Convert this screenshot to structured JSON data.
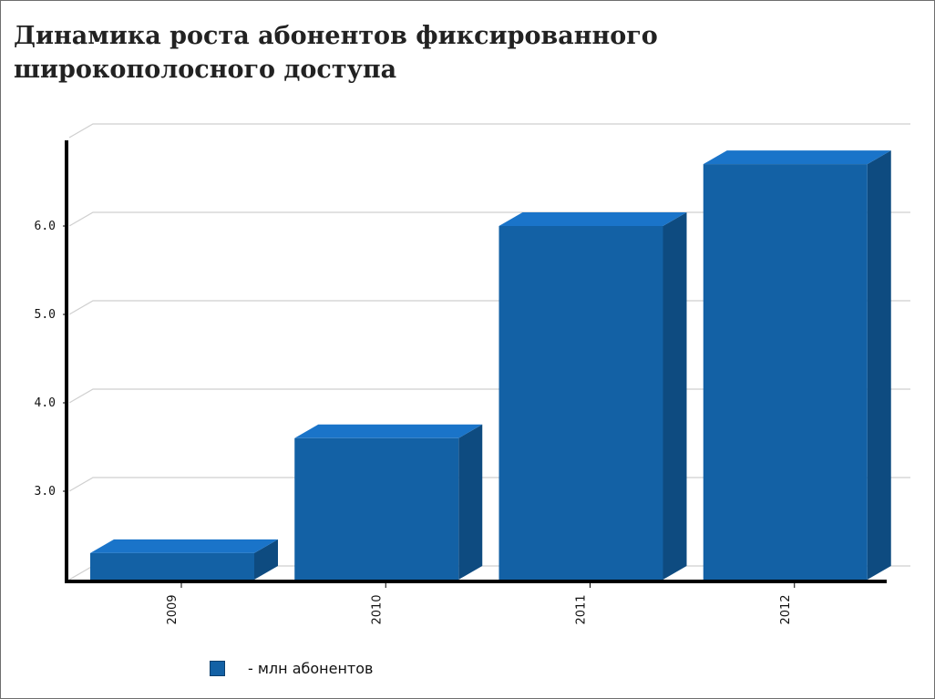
{
  "title": "Динамика роста абонентов фиксированного широкополосного доступа",
  "chart_data": {
    "type": "bar",
    "title": "Динамика роста абонентов фиксированного широкополосного доступа",
    "categories": [
      "2009",
      "2010",
      "2011",
      "2012"
    ],
    "series": [
      {
        "name": "- млн абонентов",
        "values": [
          2.3,
          3.6,
          6.0,
          6.7
        ]
      }
    ],
    "xlabel": "",
    "ylabel": "",
    "ylim": [
      2.0,
      7.0
    ],
    "yticks": [
      "3.0",
      "4.0",
      "5.0",
      "6.0"
    ],
    "grid": true,
    "legend_position": "bottom",
    "style": "3d",
    "bar_color": "#1361a5",
    "bar_top_color": "#1a74c9",
    "bar_side_color": "#0e4b80",
    "axis_color": "#000000",
    "grid_color": "#cfcfcf"
  },
  "legend": {
    "label": "- млн абонентов"
  }
}
